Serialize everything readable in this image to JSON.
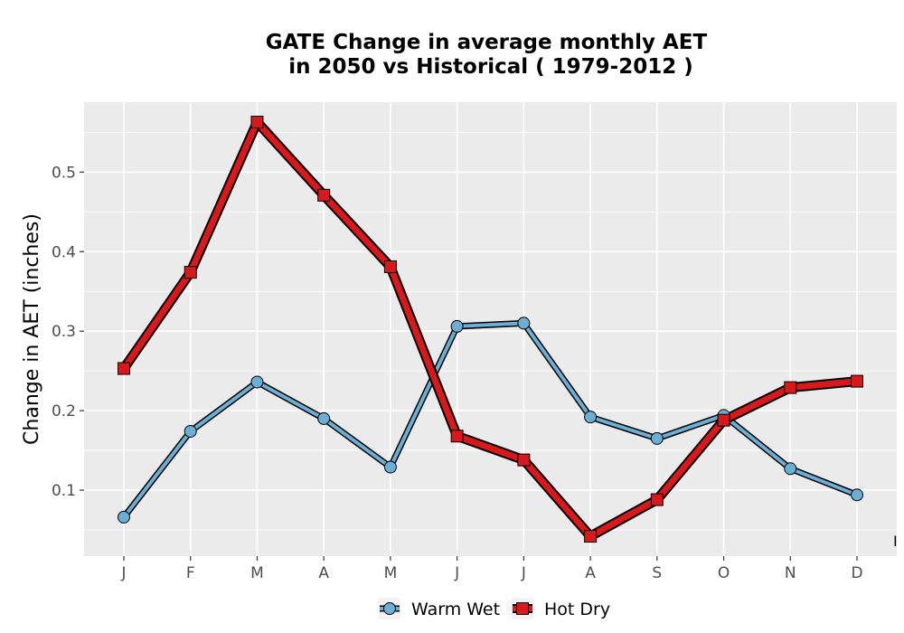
{
  "chart_data": {
    "type": "line",
    "title": [
      "GATE  Change in average monthly AET",
      "in 2050 vs Historical ( 1979-2012 )"
    ],
    "xlabel": "",
    "ylabel": "Change in AET (inches)",
    "categories": [
      "J",
      "F",
      "M",
      "A",
      "M",
      "J",
      "J",
      "A",
      "S",
      "O",
      "N",
      "D"
    ],
    "yticks": [
      "0.1",
      "0.2",
      "0.3",
      "0.4",
      "0.5"
    ],
    "ylim": [
      0.017,
      0.588
    ],
    "grid": true,
    "legend_position": "bottom",
    "background_color": "#ebebeb",
    "series": [
      {
        "name": "Warm Wet",
        "marker": "circle",
        "fill_color": "#6baed6",
        "values": [
          0.066,
          0.174,
          0.236,
          0.19,
          0.129,
          0.306,
          0.31,
          0.192,
          0.165,
          0.194,
          0.127,
          0.094
        ]
      },
      {
        "name": "Hot Dry",
        "marker": "square",
        "fill_color": "#d7191c",
        "values": [
          0.253,
          0.374,
          0.563,
          0.471,
          0.381,
          0.168,
          0.138,
          0.042,
          0.088,
          0.188,
          0.229,
          0.237
        ]
      }
    ],
    "stray_glyph": "I"
  }
}
